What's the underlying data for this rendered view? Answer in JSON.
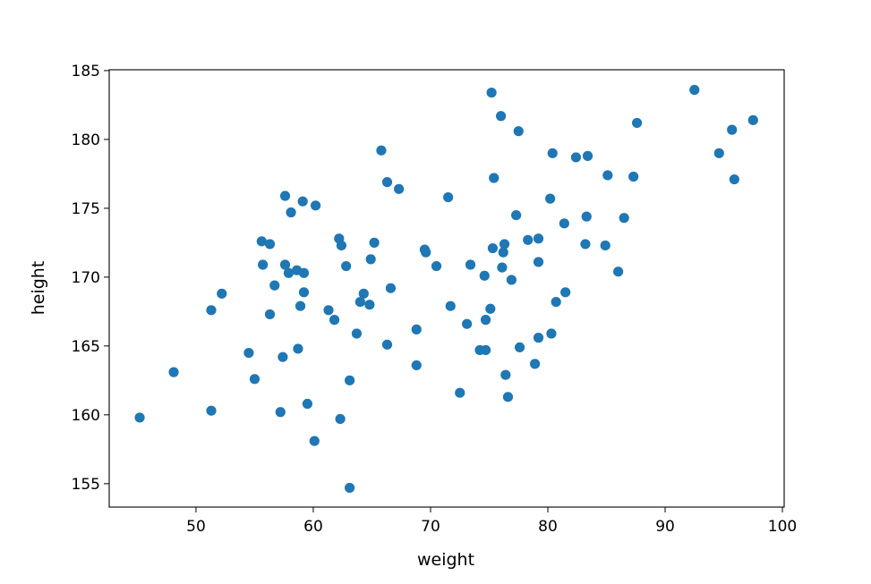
{
  "chart_data": {
    "type": "scatter",
    "title": "",
    "xlabel": "weight",
    "ylabel": "height",
    "xlim": [
      42.6,
      100.15
    ],
    "ylim": [
      153.3,
      185.06
    ],
    "xticks": [
      50,
      60,
      70,
      80,
      90,
      100
    ],
    "yticks": [
      155,
      160,
      165,
      170,
      175,
      180,
      185
    ],
    "grid": false,
    "marker_color": "#1f77b4",
    "points": [
      [
        45.2,
        159.8
      ],
      [
        48.1,
        163.1
      ],
      [
        51.3,
        167.6
      ],
      [
        51.3,
        160.3
      ],
      [
        52.2,
        168.8
      ],
      [
        54.5,
        164.5
      ],
      [
        55.0,
        162.6
      ],
      [
        55.6,
        172.6
      ],
      [
        55.7,
        170.9
      ],
      [
        56.3,
        172.4
      ],
      [
        56.3,
        167.3
      ],
      [
        56.7,
        169.4
      ],
      [
        57.2,
        160.2
      ],
      [
        57.4,
        164.2
      ],
      [
        57.6,
        175.9
      ],
      [
        57.6,
        170.9
      ],
      [
        57.9,
        170.3
      ],
      [
        58.1,
        174.7
      ],
      [
        58.6,
        170.5
      ],
      [
        58.7,
        164.8
      ],
      [
        58.9,
        167.9
      ],
      [
        59.1,
        175.5
      ],
      [
        59.2,
        170.3
      ],
      [
        59.2,
        168.9
      ],
      [
        59.5,
        160.8
      ],
      [
        60.2,
        175.2
      ],
      [
        60.1,
        158.1
      ],
      [
        61.3,
        167.6
      ],
      [
        61.8,
        166.9
      ],
      [
        62.2,
        172.8
      ],
      [
        62.4,
        172.3
      ],
      [
        62.3,
        159.7
      ],
      [
        62.8,
        170.8
      ],
      [
        63.1,
        162.5
      ],
      [
        63.1,
        154.7
      ],
      [
        63.7,
        165.9
      ],
      [
        64.0,
        168.2
      ],
      [
        64.3,
        168.8
      ],
      [
        64.8,
        168.0
      ],
      [
        64.9,
        171.3
      ],
      [
        65.2,
        172.5
      ],
      [
        65.8,
        179.2
      ],
      [
        66.3,
        176.9
      ],
      [
        66.3,
        165.1
      ],
      [
        66.6,
        169.2
      ],
      [
        67.3,
        176.4
      ],
      [
        68.8,
        166.2
      ],
      [
        68.8,
        163.6
      ],
      [
        69.5,
        172.0
      ],
      [
        69.6,
        171.8
      ],
      [
        70.5,
        170.8
      ],
      [
        71.5,
        175.8
      ],
      [
        71.7,
        167.9
      ],
      [
        72.5,
        161.6
      ],
      [
        73.1,
        166.6
      ],
      [
        73.4,
        170.9
      ],
      [
        74.2,
        164.7
      ],
      [
        74.7,
        164.7
      ],
      [
        74.6,
        170.1
      ],
      [
        74.7,
        166.9
      ],
      [
        75.1,
        167.7
      ],
      [
        75.2,
        183.4
      ],
      [
        75.3,
        172.1
      ],
      [
        75.4,
        177.2
      ],
      [
        76.0,
        181.7
      ],
      [
        76.1,
        170.7
      ],
      [
        76.2,
        171.8
      ],
      [
        76.3,
        172.4
      ],
      [
        76.4,
        162.9
      ],
      [
        76.6,
        161.3
      ],
      [
        76.9,
        169.8
      ],
      [
        77.3,
        174.5
      ],
      [
        77.5,
        180.6
      ],
      [
        77.6,
        164.9
      ],
      [
        78.3,
        172.7
      ],
      [
        78.9,
        163.7
      ],
      [
        79.2,
        171.1
      ],
      [
        79.2,
        172.8
      ],
      [
        79.2,
        165.6
      ],
      [
        80.2,
        175.7
      ],
      [
        80.3,
        165.9
      ],
      [
        80.4,
        179.0
      ],
      [
        80.7,
        168.2
      ],
      [
        81.4,
        173.9
      ],
      [
        81.5,
        168.9
      ],
      [
        82.4,
        178.7
      ],
      [
        83.2,
        172.4
      ],
      [
        83.3,
        174.4
      ],
      [
        83.4,
        178.8
      ],
      [
        84.9,
        172.3
      ],
      [
        85.1,
        177.4
      ],
      [
        86.0,
        170.4
      ],
      [
        86.5,
        174.3
      ],
      [
        87.3,
        177.3
      ],
      [
        87.6,
        181.2
      ],
      [
        92.5,
        183.6
      ],
      [
        94.6,
        179.0
      ],
      [
        95.7,
        180.7
      ],
      [
        95.9,
        177.1
      ],
      [
        97.5,
        181.4
      ]
    ]
  }
}
